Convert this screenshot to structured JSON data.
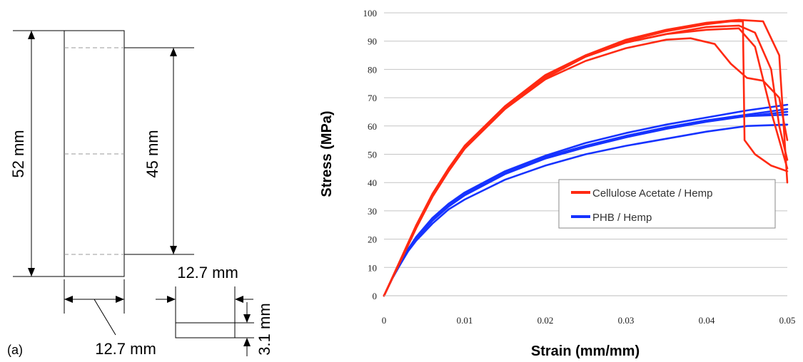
{
  "panel_label": "(a)",
  "specimen": {
    "total_length": "52 mm",
    "gauge_length": "45 mm",
    "width_label_top": "12.7 mm",
    "width_label_bottom": "12.7 mm",
    "thickness": "3.1 mm"
  },
  "chart_data": {
    "type": "line",
    "title": "",
    "xlabel": "Strain (mm/mm)",
    "ylabel": "Stress (MPa)",
    "xlim": [
      0,
      0.05
    ],
    "ylim": [
      0,
      100
    ],
    "xticks": [
      "0",
      "0.01",
      "0.02",
      "0.03",
      "0.04",
      "0.05"
    ],
    "yticks": [
      "0",
      "10",
      "20",
      "30",
      "40",
      "50",
      "60",
      "70",
      "80",
      "90",
      "100"
    ],
    "grid": "horizontal",
    "legend_position": "right-middle",
    "colors": {
      "Cellulose Acetate / Hemp": "#ff2a12",
      "PHB / Hemp": "#1633ff"
    },
    "series": [
      {
        "name": "Cellulose Acetate / Hemp",
        "specimen": 1,
        "x": [
          0,
          0.002,
          0.004,
          0.006,
          0.008,
          0.01,
          0.015,
          0.02,
          0.025,
          0.03,
          0.035,
          0.04,
          0.043,
          0.0445,
          0.0447,
          0.046,
          0.048,
          0.05
        ],
        "y": [
          0,
          12.5,
          25,
          36,
          45,
          53,
          67,
          78,
          85,
          90,
          93.5,
          96,
          97,
          97,
          55,
          50,
          46,
          44
        ]
      },
      {
        "name": "Cellulose Acetate / Hemp",
        "specimen": 2,
        "x": [
          0,
          0.002,
          0.004,
          0.006,
          0.008,
          0.01,
          0.015,
          0.02,
          0.025,
          0.03,
          0.035,
          0.04,
          0.044,
          0.046,
          0.048,
          0.049,
          0.05
        ],
        "y": [
          0,
          12,
          24,
          35,
          44,
          52,
          66,
          77,
          84.5,
          89.5,
          92.5,
          95,
          95.5,
          93,
          80,
          60,
          48
        ]
      },
      {
        "name": "Cellulose Acetate / Hemp",
        "specimen": 3,
        "x": [
          0,
          0.002,
          0.004,
          0.006,
          0.008,
          0.01,
          0.015,
          0.02,
          0.025,
          0.03,
          0.035,
          0.04,
          0.044,
          0.047,
          0.049,
          0.05
        ],
        "y": [
          0,
          12,
          24,
          35,
          44,
          52,
          66.5,
          77.5,
          85,
          90.5,
          94,
          96.5,
          97.5,
          97,
          85,
          40
        ]
      },
      {
        "name": "Cellulose Acetate / Hemp",
        "specimen": 4,
        "x": [
          0,
          0.002,
          0.004,
          0.006,
          0.008,
          0.01,
          0.015,
          0.02,
          0.025,
          0.03,
          0.035,
          0.038,
          0.041,
          0.043,
          0.045,
          0.047,
          0.049,
          0.05
        ],
        "y": [
          0,
          12,
          24,
          35,
          44,
          52,
          66,
          76.5,
          83,
          87.5,
          90.5,
          91,
          89,
          82,
          77,
          76,
          70,
          55
        ]
      },
      {
        "name": "Cellulose Acetate / Hemp",
        "specimen": 5,
        "x": [
          0,
          0.002,
          0.004,
          0.006,
          0.008,
          0.01,
          0.015,
          0.02,
          0.025,
          0.03,
          0.035,
          0.04,
          0.044,
          0.046,
          0.048,
          0.05
        ],
        "y": [
          0,
          12.3,
          24.5,
          35.5,
          44.5,
          52.5,
          66.5,
          77.5,
          84.5,
          89.5,
          92.5,
          94,
          94.5,
          88,
          65,
          45
        ]
      },
      {
        "name": "PHB / Hemp",
        "specimen": 1,
        "x": [
          0,
          0.001,
          0.002,
          0.003,
          0.004,
          0.006,
          0.008,
          0.01,
          0.015,
          0.02,
          0.025,
          0.03,
          0.035,
          0.04,
          0.045,
          0.05
        ],
        "y": [
          0,
          6,
          11.5,
          16.5,
          20.5,
          27,
          32,
          36,
          43.5,
          49,
          53,
          56.5,
          59.5,
          62,
          64,
          66
        ]
      },
      {
        "name": "PHB / Hemp",
        "specimen": 2,
        "x": [
          0,
          0.001,
          0.002,
          0.003,
          0.004,
          0.006,
          0.008,
          0.01,
          0.015,
          0.02,
          0.025,
          0.03,
          0.035,
          0.04,
          0.045,
          0.05
        ],
        "y": [
          0,
          6,
          11.5,
          16.5,
          20.8,
          27.5,
          32.5,
          36.5,
          44,
          49.5,
          54,
          57.5,
          60.5,
          63,
          65.5,
          67.5
        ]
      },
      {
        "name": "PHB / Hemp",
        "specimen": 3,
        "x": [
          0,
          0.001,
          0.002,
          0.003,
          0.004,
          0.006,
          0.008,
          0.01,
          0.015,
          0.02,
          0.025,
          0.03,
          0.035,
          0.04,
          0.045,
          0.05
        ],
        "y": [
          0,
          6,
          11.5,
          16.2,
          20.2,
          26.5,
          31.5,
          35.5,
          43,
          48.5,
          52.5,
          56,
          59,
          61.5,
          63.5,
          65
        ]
      },
      {
        "name": "PHB / Hemp",
        "specimen": 4,
        "x": [
          0,
          0.001,
          0.002,
          0.003,
          0.004,
          0.006,
          0.008,
          0.01,
          0.015,
          0.02,
          0.025,
          0.03,
          0.035,
          0.04,
          0.045,
          0.05
        ],
        "y": [
          0,
          6,
          11,
          15.8,
          19.5,
          25.5,
          30.5,
          34,
          41,
          46,
          50,
          53,
          55.5,
          58,
          60,
          60.5
        ]
      },
      {
        "name": "PHB / Hemp",
        "specimen": 5,
        "x": [
          0,
          0.001,
          0.002,
          0.003,
          0.004,
          0.006,
          0.008,
          0.01,
          0.015,
          0.02,
          0.025,
          0.03,
          0.035,
          0.04,
          0.045,
          0.05
        ],
        "y": [
          0,
          6,
          11.3,
          16.2,
          20.4,
          27,
          32,
          36,
          43.5,
          49,
          53,
          56.5,
          59.5,
          62,
          63.5,
          64
        ]
      }
    ],
    "legend": [
      "Cellulose Acetate / Hemp",
      "PHB / Hemp"
    ]
  }
}
